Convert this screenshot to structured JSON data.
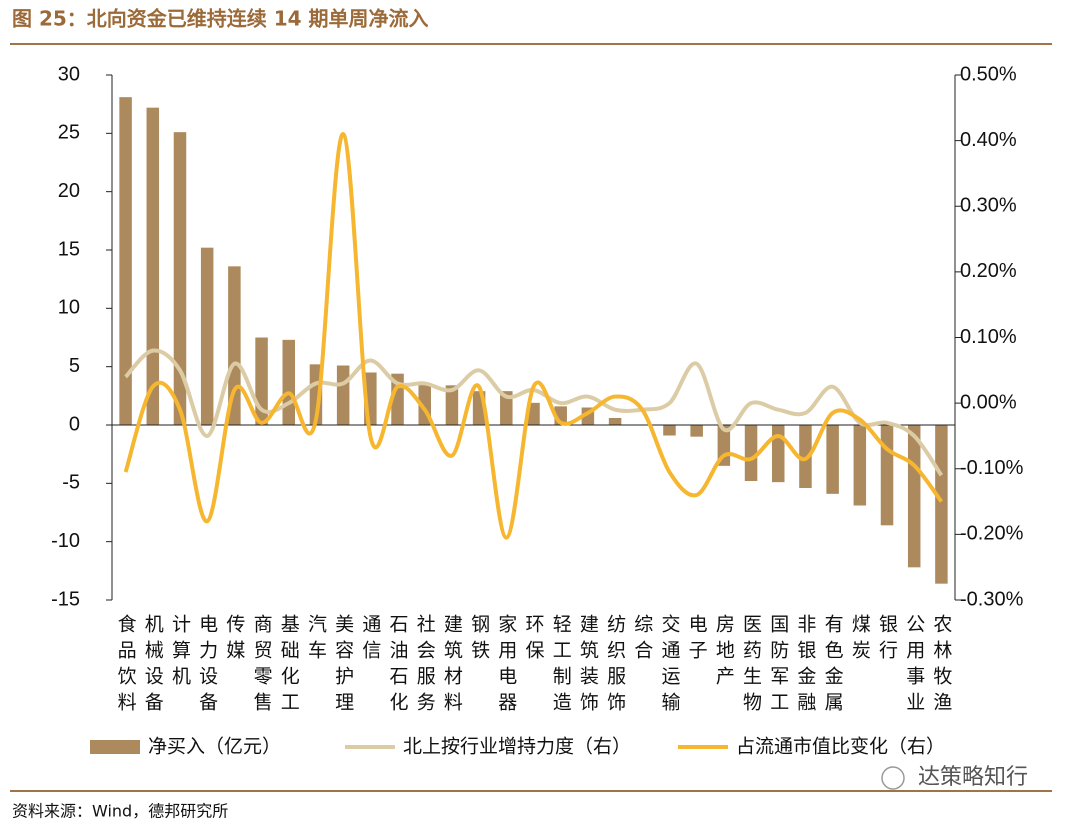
{
  "chart_data": {
    "type": "combo",
    "title": "图 25：北向资金已维持连续 14 期单周净流入",
    "categories": [
      "食品饮料",
      "机械设备",
      "计算机",
      "电力设备",
      "传媒",
      "商贸零售",
      "基础化工",
      "汽车",
      "美容护理",
      "通信",
      "石油石化",
      "社会服务",
      "建筑材料",
      "钢铁",
      "家用电器",
      "环保",
      "轻工制造",
      "建筑装饰",
      "纺织服饰",
      "综合",
      "交通运输",
      "电子",
      "房地产",
      "医药生物",
      "国防军工",
      "非银金融",
      "有色金属",
      "煤炭",
      "银行",
      "公用事业",
      "农林牧渔"
    ],
    "series": [
      {
        "name": "净买入（亿元）",
        "type": "bar",
        "color": "#ad8a5e",
        "values": [
          28.1,
          27.2,
          25.1,
          15.2,
          13.6,
          7.5,
          7.3,
          5.2,
          5.1,
          4.5,
          4.4,
          3.5,
          3.4,
          2.9,
          2.9,
          1.9,
          1.6,
          1.5,
          0.6,
          0,
          -0.9,
          -1.0,
          -3.5,
          -4.8,
          -4.9,
          -5.4,
          -5.9,
          -6.9,
          -8.6,
          -12.2,
          -13.6
        ]
      },
      {
        "name": "北上按行业增持力度（右）",
        "type": "line",
        "axis": "y2",
        "color": "#dccca6",
        "values": [
          0.04,
          0.08,
          0.05,
          -0.05,
          0.06,
          -0.01,
          0.0,
          0.03,
          0.03,
          0.065,
          0.03,
          0.03,
          0.02,
          0.05,
          0.01,
          0.02,
          0.0,
          0.01,
          -0.01,
          -0.01,
          0.0,
          0.06,
          -0.04,
          0.0,
          -0.01,
          -0.015,
          0.025,
          -0.03,
          -0.03,
          -0.05,
          -0.11
        ]
      },
      {
        "name": "占流通市值比变化（右）",
        "type": "line",
        "axis": "y2",
        "color": "#f6b62f",
        "values": [
          -0.105,
          0.025,
          -0.01,
          -0.18,
          0.02,
          -0.03,
          0.015,
          -0.025,
          0.41,
          -0.05,
          0.025,
          -0.01,
          -0.08,
          0.025,
          -0.205,
          0.025,
          -0.03,
          -0.015,
          0.01,
          -0.01,
          -0.105,
          -0.14,
          -0.08,
          -0.085,
          -0.05,
          -0.085,
          -0.015,
          -0.025,
          -0.07,
          -0.095,
          -0.15
        ]
      }
    ],
    "ylim": [
      -15,
      30
    ],
    "yticks": [
      -15,
      -10,
      -5,
      0,
      5,
      10,
      15,
      20,
      25,
      30
    ],
    "y2lim": [
      -0.3,
      0.5
    ],
    "y2ticks": [
      {
        "value": -0.3,
        "label": "-0.30%"
      },
      {
        "value": -0.2,
        "label": "-0.20%"
      },
      {
        "value": -0.1,
        "label": "-0.10%"
      },
      {
        "value": 0,
        "label": "0.00%"
      },
      {
        "value": 0.1,
        "label": "0.10%"
      },
      {
        "value": 0.2,
        "label": "0.20%"
      },
      {
        "value": 0.3,
        "label": "0.30%"
      },
      {
        "value": 0.4,
        "label": "0.40%"
      },
      {
        "value": 0.5,
        "label": "0.50%"
      }
    ],
    "legend": "bottom"
  },
  "watermark": "达策略知行",
  "source": "资料来源：Wind，德邦研究所"
}
